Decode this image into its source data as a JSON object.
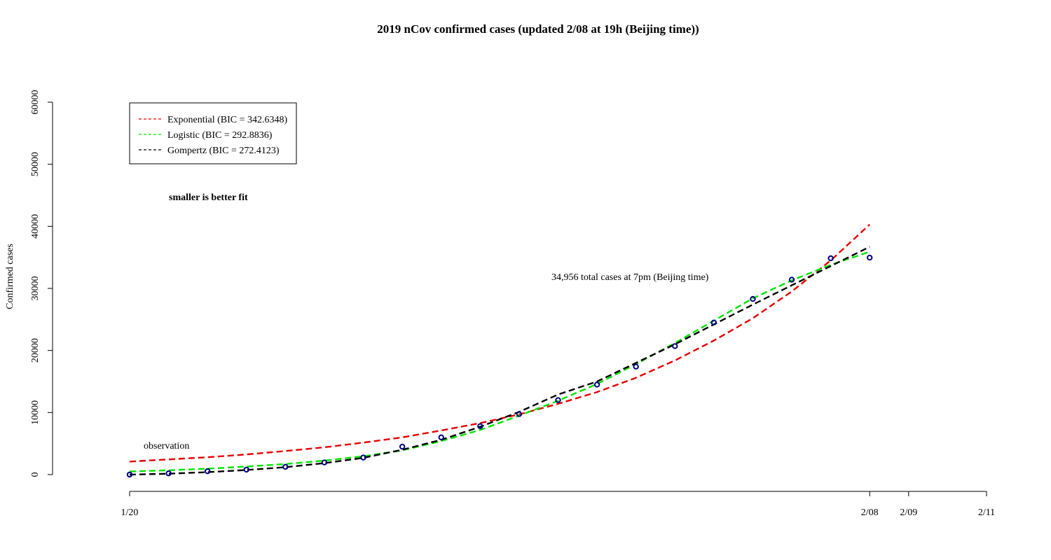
{
  "chart_data": {
    "type": "line",
    "title": "2019 nCov confirmed cases (updated 2/08 at 19h (Beijing time))",
    "xlabel": "",
    "ylabel": "Confirmed cases",
    "ylim": [
      0,
      60000
    ],
    "y_ticks": [
      "0",
      "10000",
      "20000",
      "30000",
      "40000",
      "50000",
      "60000"
    ],
    "xlim_days": [
      0,
      22
    ],
    "x_ticks": [
      {
        "day": 0,
        "label": "1/20"
      },
      {
        "day": 19,
        "label": "2/08"
      },
      {
        "day": 20,
        "label": "2/09"
      },
      {
        "day": 22,
        "label": "2/11"
      }
    ],
    "observations": {
      "name": "observation",
      "color": "#00007f",
      "x": [
        0,
        1,
        2,
        3,
        4,
        5,
        6,
        7,
        8,
        9,
        10,
        11,
        12,
        13,
        14,
        15,
        16,
        17,
        18,
        19
      ],
      "y": [
        0,
        200,
        550,
        800,
        1250,
        1950,
        2750,
        4500,
        6000,
        7800,
        9750,
        12000,
        14500,
        17400,
        20700,
        24500,
        28300,
        31400,
        34850,
        34956
      ]
    },
    "series": [
      {
        "name": "Exponential (BIC = 342.6348)",
        "legend_label": "Exponential (BIC = 342.6348)",
        "color": "#e60000",
        "x": [
          0,
          1,
          2,
          3,
          4,
          5,
          6,
          7,
          8,
          9,
          10,
          11,
          12,
          13,
          14,
          15,
          16,
          17,
          18,
          19
        ],
        "y": [
          2100,
          2450,
          2800,
          3250,
          3800,
          4400,
          5150,
          6000,
          7100,
          8300,
          9700,
          11400,
          13300,
          15600,
          18400,
          21600,
          25200,
          29500,
          34500,
          40300
        ]
      },
      {
        "name": "Logistic (BIC =  292.8836)",
        "legend_label": "Logistic (BIC =  292.8836)",
        "color": "#00e600",
        "x": [
          0,
          1,
          2,
          3,
          4,
          5,
          6,
          7,
          8,
          9,
          10,
          11,
          12,
          13,
          14,
          15,
          16,
          17,
          18,
          19
        ],
        "y": [
          500,
          700,
          950,
          1300,
          1700,
          2250,
          2950,
          3900,
          5400,
          7200,
          9500,
          11900,
          14600,
          17800,
          21200,
          24800,
          28400,
          31300,
          33800,
          35900
        ]
      },
      {
        "name": "Gompertz (BIC = 272.4123)",
        "legend_label": "Gompertz (BIC = 272.4123)",
        "color": "#000000",
        "x": [
          0,
          1,
          2,
          3,
          4,
          5,
          6,
          7,
          8,
          9,
          10,
          11,
          12,
          13,
          14,
          15,
          16,
          17,
          18,
          19
        ],
        "y": [
          0,
          150,
          400,
          750,
          1200,
          1850,
          2700,
          4000,
          5600,
          7700,
          10100,
          12900,
          15000,
          18000,
          21000,
          24200,
          27400,
          30500,
          33600,
          36700
        ]
      }
    ],
    "legend_position": "top-left",
    "grid": false,
    "annotations": [
      {
        "text": "observation"
      },
      {
        "text": "smaller is better fit"
      },
      {
        "text": "34,956 total cases at 7pm (Beijing time)"
      }
    ]
  }
}
